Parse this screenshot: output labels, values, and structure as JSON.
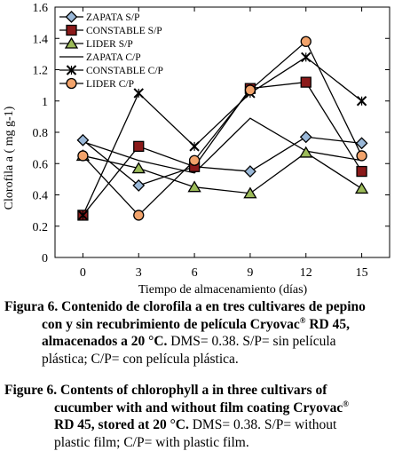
{
  "chart_data": {
    "type": "line",
    "xlabel": "Tiempo de almacenamiento (días)",
    "ylabel": "Clorofila a ( mg g-1)",
    "x": [
      0,
      3,
      6,
      9,
      12,
      15
    ],
    "xticks": [
      "0",
      "3",
      "6",
      "9",
      "12",
      "15"
    ],
    "ylim": [
      0,
      1.6
    ],
    "yticks": [
      "0",
      "0.2",
      "0.4",
      "0.6",
      "0.8",
      "1",
      "1.2",
      "1.4",
      "1.6"
    ],
    "legend_position": "top-left",
    "grid": false,
    "series": [
      {
        "name": "ZAPATA S/P",
        "marker": "diamond",
        "fill": "#9ab8d8",
        "values": [
          0.75,
          0.46,
          0.58,
          0.55,
          0.77,
          0.73
        ]
      },
      {
        "name": "CONSTABLE S/P",
        "marker": "square",
        "fill": "#8b1a1a",
        "values": [
          0.27,
          0.71,
          0.58,
          1.08,
          1.12,
          0.55
        ]
      },
      {
        "name": "LIDER S/P",
        "marker": "triangle",
        "fill": "#9cbb59",
        "values": [
          0.65,
          0.57,
          0.45,
          0.41,
          0.67,
          0.44
        ]
      },
      {
        "name": "ZAPATA C/P",
        "marker": "none",
        "fill": "#000000",
        "values": [
          0.74,
          0.62,
          0.54,
          0.89,
          0.68,
          0.62
        ]
      },
      {
        "name": "CONSTABLE C/P",
        "marker": "x",
        "fill": "#000000",
        "values": [
          0.27,
          1.05,
          0.71,
          1.05,
          1.28,
          1.0
        ]
      },
      {
        "name": "LIDER C/P",
        "marker": "circle",
        "fill": "#f2a36b",
        "values": [
          0.65,
          0.27,
          0.62,
          1.07,
          1.38,
          0.65
        ]
      }
    ]
  },
  "caption_es": {
    "line1_bold": "Figura 6. Contenido de clorofila a en tres cultivares de pepino",
    "line2_bold": "con y sin recubrimiento de película Cryovac",
    "line2_sup": "®",
    "line2_bold_end": " RD 45,",
    "line3_bold": "almacenados a 20 °C.",
    "line3_text": " DMS= 0.38. S/P= sin película",
    "line4_text": "plástica; C/P= con película plástica."
  },
  "caption_en": {
    "line1_bold": "Figure 6. Contents of chlorophyll a in three cultivars of",
    "line2_bold": "cucumber with and without film coating Cryovac",
    "line2_sup": "®",
    "line3_bold": "RD 45, stored at 20 °C.",
    "line3_text": " DMS= 0.38. S/P= without",
    "line4_text": "plastic film; C/P= with plastic film."
  }
}
